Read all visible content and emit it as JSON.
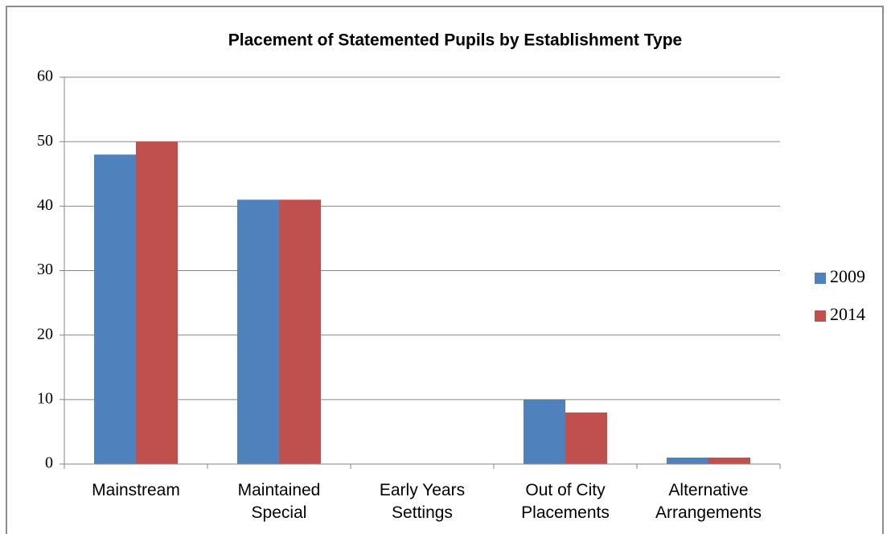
{
  "chart_data": {
    "type": "bar",
    "title": "Placement of Statemented Pupils by Establishment Type",
    "categories": [
      "Mainstream",
      "Maintained Special",
      "Early Years Settings",
      "Out of City Placements",
      "Alternative Arrangements"
    ],
    "series": [
      {
        "name": "2009",
        "color": "#4f81bd",
        "values": [
          48,
          41,
          0,
          10,
          1
        ]
      },
      {
        "name": "2014",
        "color": "#c0504d",
        "values": [
          50,
          41,
          0,
          8,
          1
        ]
      }
    ],
    "ylim": [
      0,
      60
    ],
    "yticks": [
      0,
      10,
      20,
      30,
      40,
      50,
      60
    ],
    "grid": true,
    "legend": "right"
  }
}
